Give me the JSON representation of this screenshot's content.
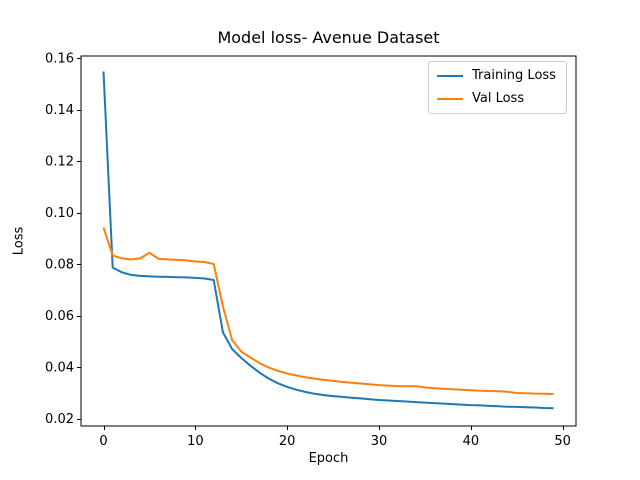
{
  "figure": {
    "background": "#ffffff"
  },
  "chart_data": {
    "type": "line",
    "title": "Model loss- Avenue Dataset",
    "xlabel": "Epoch",
    "ylabel": "Loss",
    "xlim": [
      -2.45,
      51.45
    ],
    "ylim": [
      0.0171,
      0.1608
    ],
    "xticks": [
      0,
      10,
      20,
      30,
      40,
      50
    ],
    "xticklabels": [
      "0",
      "10",
      "20",
      "30",
      "40",
      "50"
    ],
    "yticks": [
      0.02,
      0.04,
      0.06,
      0.08,
      0.1,
      0.12,
      0.14,
      0.16
    ],
    "yticklabels": [
      "0.02",
      "0.04",
      "0.06",
      "0.08",
      "0.10",
      "0.12",
      "0.14",
      "0.16"
    ],
    "grid": false,
    "legend_position": "upper right",
    "x": [
      0,
      1,
      2,
      3,
      4,
      5,
      6,
      7,
      8,
      9,
      10,
      11,
      12,
      13,
      14,
      15,
      16,
      17,
      18,
      19,
      20,
      21,
      22,
      23,
      24,
      25,
      26,
      27,
      28,
      29,
      30,
      31,
      32,
      33,
      34,
      35,
      36,
      37,
      38,
      39,
      40,
      41,
      42,
      43,
      44,
      45,
      46,
      47,
      48,
      49
    ],
    "series": [
      {
        "name": "Training Loss",
        "color": "#1f77b4",
        "values": [
          0.1548,
          0.0786,
          0.0768,
          0.0758,
          0.0754,
          0.0752,
          0.0751,
          0.075,
          0.0749,
          0.0748,
          0.0746,
          0.0744,
          0.0738,
          0.0535,
          0.047,
          0.0435,
          0.0405,
          0.0378,
          0.0355,
          0.0337,
          0.0323,
          0.0312,
          0.0303,
          0.0296,
          0.0291,
          0.0287,
          0.0284,
          0.0281,
          0.0278,
          0.0275,
          0.0272,
          0.027,
          0.0268,
          0.0266,
          0.0264,
          0.0262,
          0.026,
          0.0258,
          0.0256,
          0.0254,
          0.0252,
          0.0251,
          0.0249,
          0.0248,
          0.0246,
          0.0245,
          0.0244,
          0.0243,
          0.0241,
          0.024
        ]
      },
      {
        "name": "Val Loss",
        "color": "#ff7f0e",
        "values": [
          0.0942,
          0.0833,
          0.0822,
          0.0818,
          0.0822,
          0.0844,
          0.082,
          0.0818,
          0.0816,
          0.0814,
          0.081,
          0.0808,
          0.08,
          0.0635,
          0.0505,
          0.046,
          0.0437,
          0.0415,
          0.0398,
          0.0385,
          0.0375,
          0.0367,
          0.036,
          0.0355,
          0.035,
          0.0346,
          0.0342,
          0.0339,
          0.0336,
          0.0333,
          0.033,
          0.0328,
          0.0326,
          0.0325,
          0.0326,
          0.0321,
          0.0318,
          0.0316,
          0.0314,
          0.0312,
          0.031,
          0.0308,
          0.0307,
          0.0306,
          0.0304,
          0.0299,
          0.0298,
          0.0297,
          0.0296,
          0.0295
        ]
      }
    ]
  }
}
